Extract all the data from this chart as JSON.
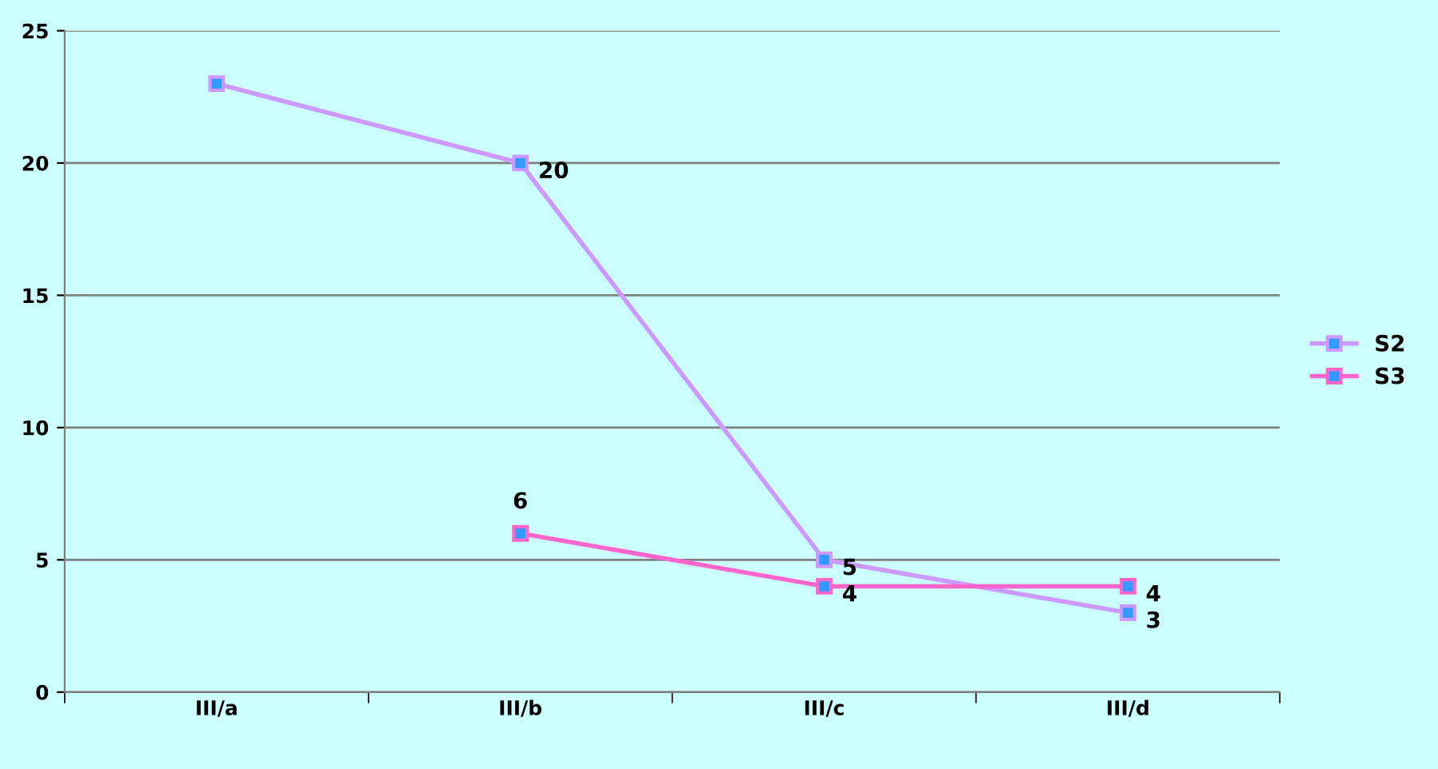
{
  "chart_data": {
    "type": "line",
    "categories": [
      "III/a",
      "III/b",
      "III/c",
      "III/d"
    ],
    "series": [
      {
        "name": "S2",
        "color": "#cc99ff",
        "values": [
          23,
          20,
          5,
          3
        ],
        "value_labels": [
          null,
          "20",
          "5",
          "3"
        ]
      },
      {
        "name": "S3",
        "color": "#ff66cc",
        "values": [
          null,
          6,
          4,
          4
        ],
        "value_labels": [
          null,
          "6",
          "4",
          "4"
        ]
      }
    ],
    "ylim": [
      0,
      25
    ],
    "yticks": [
      0,
      5,
      10,
      15,
      20,
      25
    ],
    "grid": "y",
    "legend": "right",
    "marker": "square",
    "line_style": "solid"
  }
}
